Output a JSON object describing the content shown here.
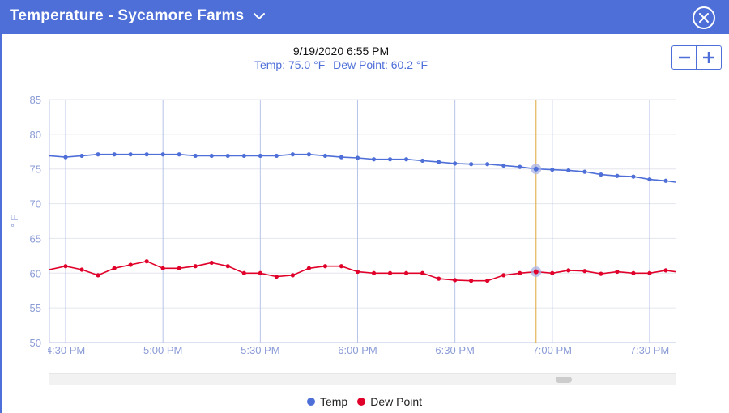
{
  "header": {
    "title": "Temperature - Sycamore Farms",
    "bg_color": "#4f6fd8",
    "dropdown_icon": "chevron-down-icon",
    "close_icon": "close-circle-icon"
  },
  "readout": {
    "datetime": "9/19/2020 6:55 PM",
    "temp_text": "Temp: 75.0 °F",
    "dew_text": "Dew Point: 60.2 °F"
  },
  "zoom": {
    "minus_icon": "minus-icon",
    "plus_icon": "plus-icon"
  },
  "scroll": {
    "position_fraction": 0.83
  },
  "chart_data": {
    "type": "line",
    "ylabel": "° F",
    "ylim": [
      50,
      85
    ],
    "yticks": [
      50,
      55,
      60,
      65,
      70,
      75,
      80,
      85
    ],
    "xticks": [
      {
        "label": "4:30 PM",
        "minute": 0
      },
      {
        "label": "5:00 PM",
        "minute": 30
      },
      {
        "label": "5:30 PM",
        "minute": 60
      },
      {
        "label": "6:00 PM",
        "minute": 90
      },
      {
        "label": "6:30 PM",
        "minute": 120
      },
      {
        "label": "7:00 PM",
        "minute": 150
      },
      {
        "label": "7:30 PM",
        "minute": 180
      }
    ],
    "x_start_minute": -5,
    "x_end_minute": 188,
    "grid": true,
    "legend_position": "bottom-center",
    "crosshair_minute": 145,
    "minutes": [
      -5,
      0,
      5,
      10,
      15,
      20,
      25,
      30,
      35,
      40,
      45,
      50,
      55,
      60,
      65,
      70,
      75,
      80,
      85,
      90,
      95,
      100,
      105,
      110,
      115,
      120,
      125,
      130,
      135,
      140,
      145,
      150,
      155,
      160,
      165,
      170,
      175,
      180,
      185,
      188
    ],
    "series": [
      {
        "name": "Temp",
        "color": "#4f6fd8",
        "values": [
          76.9,
          76.7,
          76.9,
          77.1,
          77.1,
          77.1,
          77.1,
          77.1,
          77.1,
          76.9,
          76.9,
          76.9,
          76.9,
          76.9,
          76.9,
          77.1,
          77.1,
          76.9,
          76.7,
          76.6,
          76.4,
          76.4,
          76.4,
          76.2,
          76.0,
          75.8,
          75.7,
          75.7,
          75.5,
          75.3,
          75.0,
          74.9,
          74.8,
          74.6,
          74.2,
          74.0,
          73.9,
          73.5,
          73.3,
          73.1
        ]
      },
      {
        "name": "Dew Point",
        "color": "#e0002a",
        "values": [
          60.5,
          61.0,
          60.5,
          59.7,
          60.7,
          61.2,
          61.7,
          60.7,
          60.7,
          61.0,
          61.5,
          61.0,
          60.0,
          60.0,
          59.5,
          59.7,
          60.7,
          61.0,
          61.0,
          60.2,
          60.0,
          60.0,
          60.0,
          60.0,
          59.2,
          59.0,
          58.9,
          58.9,
          59.7,
          60.0,
          60.2,
          60.0,
          60.4,
          60.3,
          59.9,
          60.2,
          60.0,
          60.0,
          60.4,
          60.2
        ]
      }
    ]
  }
}
